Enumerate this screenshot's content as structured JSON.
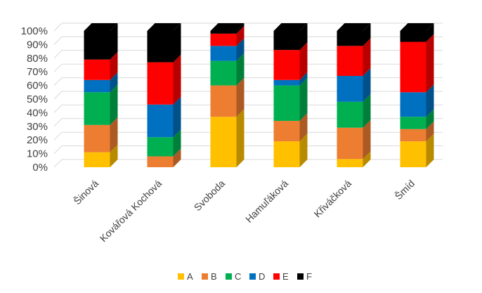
{
  "chart_data": {
    "type": "bar",
    "stacked": true,
    "three_d": true,
    "categories": [
      "Šinová",
      "Kovářová Kochová",
      "Svoboda",
      "Hamuľáková",
      "Křiváčková",
      "Šmíd"
    ],
    "series": [
      {
        "name": "A",
        "color": "#FFC000",
        "values": [
          11,
          0,
          37,
          19,
          6,
          19
        ]
      },
      {
        "name": "B",
        "color": "#ED7D31",
        "values": [
          20,
          8,
          23,
          15,
          23,
          9
        ]
      },
      {
        "name": "C",
        "color": "#00B050",
        "values": [
          24,
          14,
          18,
          26,
          19,
          9
        ]
      },
      {
        "name": "D",
        "color": "#0070C0",
        "values": [
          9,
          24,
          11,
          4,
          19,
          18
        ]
      },
      {
        "name": "E",
        "color": "#FF0000",
        "values": [
          15,
          31,
          9,
          22,
          22,
          37
        ]
      },
      {
        "name": "F",
        "color": "#000000",
        "values": [
          21,
          23,
          2,
          14,
          11,
          8
        ]
      }
    ],
    "y_ticks": [
      "0%",
      "10%",
      "20%",
      "30%",
      "40%",
      "50%",
      "60%",
      "70%",
      "80%",
      "90%",
      "100%"
    ],
    "ylim": [
      0,
      100
    ],
    "grid": true,
    "legend_position": "bottom"
  }
}
